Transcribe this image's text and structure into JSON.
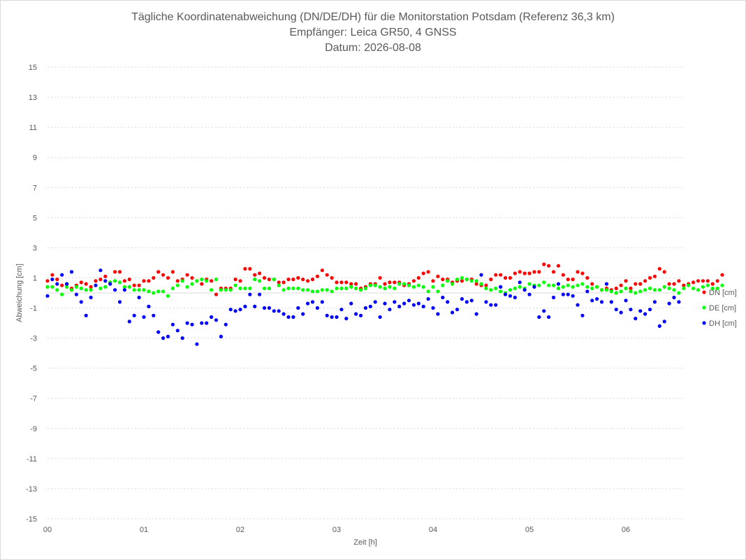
{
  "chart_data": {
    "type": "scatter",
    "title": [
      "Tägliche Koordinatenabweichung (DN/DE/DH) für die Monitorstation Potsdam (Referenz 36,3 km)",
      "Empfänger: Leica GR50, 4 GNSS",
      "Datum: 2026-08-08"
    ],
    "xlabel": "Zeit [h]",
    "ylabel": "Abweichung [cm]",
    "xlim": [
      0,
      6.66
    ],
    "ylim": [
      -15,
      15
    ],
    "x_ticks": [
      {
        "value": 0,
        "label": "00"
      },
      {
        "value": 1,
        "label": "01"
      },
      {
        "value": 2,
        "label": "02"
      },
      {
        "value": 3,
        "label": "03"
      },
      {
        "value": 4,
        "label": "04"
      },
      {
        "value": 5,
        "label": "05"
      },
      {
        "value": 6,
        "label": "06"
      }
    ],
    "y_ticks": [
      15,
      13,
      11,
      9,
      7,
      5,
      3,
      1,
      -1,
      -3,
      -5,
      -7,
      -9,
      -11,
      -13,
      -15
    ],
    "grid": "horizontal dotted",
    "legend_position": "right",
    "x_step": 0.05,
    "series": [
      {
        "name": "DN [cm]",
        "color": "#ff0000",
        "values": [
          0.8,
          1.2,
          0.9,
          0.5,
          0.6,
          0.3,
          0.5,
          0.7,
          0.6,
          0.4,
          0.8,
          0.9,
          1.1,
          0.7,
          1.4,
          1.4,
          0.8,
          0.9,
          0.5,
          0.5,
          0.8,
          0.8,
          1.0,
          1.4,
          1.2,
          1.0,
          1.4,
          0.8,
          0.9,
          1.2,
          1.0,
          0.8,
          0.6,
          0.9,
          0.8,
          -0.1,
          0.3,
          0.3,
          0.3,
          0.9,
          0.8,
          1.6,
          1.6,
          1.2,
          1.3,
          1.0,
          0.9,
          0.9,
          0.7,
          0.7,
          0.9,
          0.9,
          1.0,
          0.9,
          0.8,
          0.9,
          1.1,
          1.5,
          1.2,
          1.0,
          0.7,
          0.7,
          0.7,
          0.6,
          0.6,
          0.3,
          0.4,
          0.6,
          0.6,
          1.0,
          0.6,
          0.7,
          0.7,
          0.7,
          0.5,
          0.6,
          0.8,
          1.0,
          1.3,
          1.4,
          0.8,
          1.1,
          0.9,
          0.9,
          0.7,
          0.8,
          0.8,
          0.9,
          0.9,
          0.6,
          0.5,
          0.5,
          0.9,
          1.2,
          1.2,
          1.0,
          1.0,
          1.3,
          1.4,
          1.3,
          1.3,
          1.4,
          1.4,
          1.9,
          1.8,
          1.4,
          1.8,
          1.2,
          0.9,
          0.9,
          1.4,
          1.3,
          1.0,
          0.6,
          0.4,
          0.2,
          0.3,
          0.2,
          0.3,
          0.5,
          0.8,
          0.3,
          0.6,
          0.6,
          0.8,
          1.0,
          1.1,
          1.6,
          1.4,
          0.6,
          0.6,
          0.8,
          0.5,
          0.6,
          0.7,
          0.8,
          0.8,
          0.8,
          0.6,
          0.8,
          1.2
        ]
      },
      {
        "name": "DE [cm]",
        "color": "#00ff00",
        "values": [
          0.4,
          0.4,
          0.2,
          -0.1,
          0.4,
          0.2,
          0.4,
          0.3,
          0.2,
          0.2,
          0.5,
          0.3,
          0.4,
          0.7,
          0.8,
          0.7,
          0.4,
          0.4,
          0.2,
          0.2,
          0.2,
          0.1,
          0.0,
          0.1,
          0.1,
          -0.2,
          0.3,
          0.5,
          0.8,
          0.4,
          0.6,
          0.8,
          0.9,
          0.8,
          0.2,
          0.9,
          0.2,
          0.2,
          0.2,
          0.5,
          0.3,
          0.3,
          0.3,
          0.9,
          0.8,
          0.3,
          0.3,
          0.9,
          0.5,
          0.2,
          0.3,
          0.3,
          0.3,
          0.2,
          0.2,
          0.1,
          0.1,
          0.2,
          0.2,
          0.1,
          0.3,
          0.3,
          0.3,
          0.4,
          0.3,
          0.2,
          0.3,
          0.5,
          0.5,
          0.4,
          0.3,
          0.4,
          0.3,
          0.6,
          0.6,
          0.5,
          0.4,
          0.5,
          0.4,
          0.1,
          0.4,
          0.1,
          0.5,
          0.8,
          0.6,
          0.9,
          1.0,
          0.9,
          0.8,
          0.8,
          0.6,
          0.3,
          0.2,
          0.3,
          0.1,
          0.0,
          0.2,
          0.3,
          0.4,
          0.3,
          0.6,
          0.5,
          0.5,
          0.7,
          0.5,
          0.5,
          0.3,
          0.4,
          0.5,
          0.4,
          0.5,
          0.6,
          0.4,
          0.3,
          0.4,
          0.2,
          0.2,
          0.1,
          0.0,
          0.1,
          0.3,
          0.1,
          0.0,
          0.1,
          0.2,
          0.3,
          0.2,
          0.2,
          0.4,
          0.3,
          0.2,
          0.0,
          0.3,
          0.5,
          0.3,
          0.2,
          0.4,
          0.5,
          0.3,
          0.3,
          0.5
        ]
      },
      {
        "name": "DH [cm]",
        "color": "#0000ff",
        "values": [
          -0.2,
          0.9,
          0.6,
          1.2,
          0.6,
          1.4,
          -0.1,
          -0.6,
          -1.5,
          -0.3,
          0.5,
          1.5,
          0.8,
          0.6,
          0.2,
          -0.6,
          0.2,
          -1.9,
          -1.5,
          -0.3,
          -1.6,
          -0.9,
          -1.5,
          -2.6,
          -3.0,
          -2.9,
          -2.1,
          -2.5,
          -3.0,
          -2.0,
          -2.1,
          -3.4,
          -2.0,
          -2.0,
          -1.6,
          -1.8,
          -2.9,
          -2.1,
          -1.1,
          -1.2,
          -1.1,
          -0.9,
          -0.1,
          -0.9,
          -0.1,
          -1.0,
          -1.0,
          -1.2,
          -1.2,
          -1.4,
          -1.6,
          -1.6,
          -1.0,
          -1.4,
          -0.7,
          -0.6,
          -1.0,
          -0.6,
          -1.5,
          -1.6,
          -1.6,
          -1.1,
          -1.7,
          -0.7,
          -1.4,
          -1.5,
          -1.0,
          -0.9,
          -0.6,
          -1.6,
          -0.7,
          -1.1,
          -0.6,
          -0.9,
          -0.7,
          -0.5,
          -0.8,
          -0.7,
          -0.9,
          -0.4,
          -1.0,
          -1.4,
          -0.3,
          -0.6,
          -1.3,
          -1.1,
          -0.4,
          -0.6,
          -0.5,
          -1.4,
          1.2,
          -0.6,
          -0.8,
          -0.8,
          0.4,
          -0.1,
          -0.2,
          -0.3,
          0.7,
          0.2,
          -0.1,
          0.4,
          -1.6,
          -1.2,
          -1.6,
          -0.3,
          0.6,
          -0.1,
          -0.1,
          -0.2,
          -0.8,
          -1.5,
          0.1,
          -0.5,
          -0.4,
          -0.6,
          0.6,
          -0.6,
          -1.1,
          -1.3,
          -0.5,
          -1.1,
          -1.7,
          -1.2,
          -1.4,
          -1.1,
          -0.6,
          -2.2,
          -1.9,
          -0.7,
          -0.3,
          -0.6
        ]
      }
    ]
  }
}
